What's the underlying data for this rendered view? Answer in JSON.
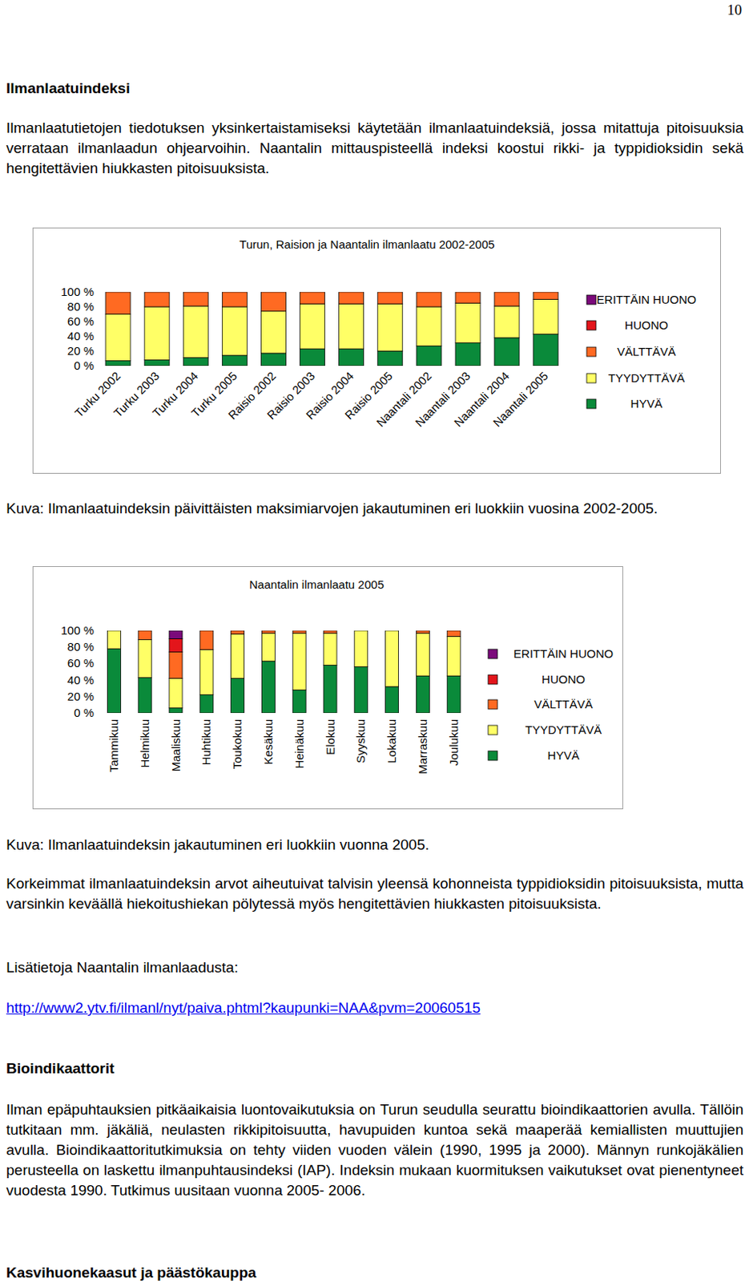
{
  "page_number": "10",
  "section1": {
    "heading": "Ilmanlaatuindeksi",
    "paragraph": "Ilmanlaatutietojen tiedotuksen yksinkertaistamiseksi käytetään ilmanlaatuindeksiä, jossa mitattuja pitoisuuksia verrataan ilmanlaadun ohjearvoihin. Naantalin mittauspisteellä indeksi koostui rikki- ja typpidioksidin sekä hengitettävien hiukkasten pitoisuuksista."
  },
  "chart_data": [
    {
      "type": "bar",
      "stacked": true,
      "legend": "right",
      "title": "Turun, Raision ja Naantalin ilmanlaatu 2002-2005",
      "categories": [
        "Turku 2002",
        "Turku 2003",
        "Turku 2004",
        "Turku 2005",
        "Raisio 2002",
        "Raisio 2003",
        "Raisio 2004",
        "Raisio 2005",
        "Naantali 2002",
        "Naantali 2003",
        "Naantali 2004",
        "Naantali 2005"
      ],
      "ylim": [
        0,
        100
      ],
      "yticks": [
        {
          "value": 0,
          "label": "0 %"
        },
        {
          "value": 20,
          "label": "20 %"
        },
        {
          "value": 40,
          "label": "40 %"
        },
        {
          "value": 60,
          "label": "60 %"
        },
        {
          "value": 80,
          "label": "80 %"
        },
        {
          "value": 100,
          "label": "100 %"
        }
      ],
      "series": [
        {
          "name": "HYVÄ",
          "color": "#0a8a3a",
          "values": [
            7,
            8,
            11,
            14,
            17,
            23,
            23,
            20,
            27,
            31,
            38,
            43
          ]
        },
        {
          "name": "TYYDYTTÄVÄ",
          "color": "#ffff66",
          "values": [
            63,
            72,
            70,
            66,
            57,
            61,
            61,
            64,
            53,
            54,
            43,
            47
          ]
        },
        {
          "name": "VÄLTTÄVÄ",
          "color": "#ff6a22",
          "values": [
            30,
            20,
            19,
            20,
            26,
            16,
            16,
            16,
            20,
            15,
            19,
            10
          ]
        },
        {
          "name": "HUONO",
          "color": "#e3151b",
          "values": [
            0,
            0,
            0,
            0,
            0,
            0,
            0,
            0,
            0,
            0,
            0,
            0
          ]
        },
        {
          "name": "ERITTÄIN HUONO",
          "color": "#7b0a7b",
          "values": [
            0,
            0,
            0,
            0,
            0,
            0,
            0,
            0,
            0,
            0,
            0,
            0
          ]
        }
      ]
    },
    {
      "type": "bar",
      "stacked": true,
      "legend": "right",
      "title": "Naantalin ilmanlaatu 2005",
      "categories": [
        "Tammikuu",
        "Helmikuu",
        "Maaliskuu",
        "Huhtikuu",
        "Toukokuu",
        "Kesäkuu",
        "Heinäkuu",
        "Elokuu",
        "Syyskuu",
        "Lokakuu",
        "Marraskuu",
        "Joulukuu"
      ],
      "ylim": [
        0,
        100
      ],
      "yticks": [
        {
          "value": 0,
          "label": "0 %"
        },
        {
          "value": 20,
          "label": "20 %"
        },
        {
          "value": 40,
          "label": "40 %"
        },
        {
          "value": 60,
          "label": "60 %"
        },
        {
          "value": 80,
          "label": "80 %"
        },
        {
          "value": 100,
          "label": "100 %"
        }
      ],
      "series": [
        {
          "name": "HYVÄ",
          "color": "#0a8a3a",
          "values": [
            78,
            43,
            6,
            22,
            42,
            63,
            28,
            58,
            56,
            32,
            45,
            45
          ]
        },
        {
          "name": "TYYDYTTÄVÄ",
          "color": "#ffff66",
          "values": [
            22,
            46,
            36,
            55,
            54,
            34,
            69,
            39,
            44,
            68,
            52,
            48
          ]
        },
        {
          "name": "VÄLTTÄVÄ",
          "color": "#ff6a22",
          "values": [
            0,
            11,
            32,
            23,
            4,
            3,
            3,
            3,
            0,
            0,
            3,
            7
          ]
        },
        {
          "name": "HUONO",
          "color": "#e3151b",
          "values": [
            0,
            0,
            16,
            0,
            0,
            0,
            0,
            0,
            0,
            0,
            0,
            0
          ]
        },
        {
          "name": "ERITTÄIN HUONO",
          "color": "#7b0a7b",
          "values": [
            0,
            0,
            10,
            0,
            0,
            0,
            0,
            0,
            0,
            0,
            0,
            0
          ]
        }
      ]
    }
  ],
  "captions": [
    "Kuva: Ilmanlaatuindeksin päivittäisten maksimiarvojen jakautuminen eri luokkiin vuosina 2002-2005.",
    "Kuva: Ilmanlaatuindeksin jakautuminen eri luokkiin vuonna 2005."
  ],
  "after_charts": {
    "paragraph": "Korkeimmat ilmanlaatuindeksin arvot aiheutuivat talvisin yleensä kohonneista typpidioksidin pitoisuuksista, mutta varsinkin keväällä hiekoitushiekan pölytessä myös hengitettävien hiukkasten pitoisuuksista.",
    "more_info": "Lisätietoja Naantalin ilmanlaadusta:",
    "link": "http://www2.ytv.fi/ilmanl/nyt/paiva.phtml?kaupunki=NAA&pvm=20060515"
  },
  "section2": {
    "heading": "Bioindikaattorit",
    "paragraph": "Ilman epäpuhtauksien pitkäaikaisia luontovaikutuksia on Turun seudulla seurattu bioindikaattorien avulla. Tällöin tutkitaan mm. jäkäliä, neulasten rikkipitoisuutta, havupuiden kuntoa sekä maaperää kemiallisten muuttujien avulla. Bioindikaattoritutkimuksia on tehty viiden vuoden välein (1990, 1995 ja 2000). Männyn runkojäkälien perusteella on laskettu ilmanpuhtausindeksi (IAP). Indeksin mukaan kuormituksen vaikutukset ovat pienentyneet vuodesta 1990. Tutkimus uusitaan vuonna 2005- 2006."
  },
  "section3": {
    "heading": "Kasvihuonekaasut ja päästökauppa"
  }
}
